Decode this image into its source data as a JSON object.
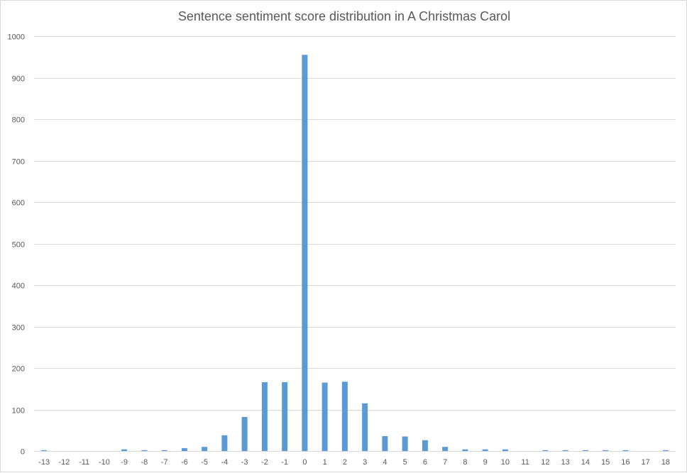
{
  "chart_data": {
    "type": "bar",
    "title": "Sentence sentiment score distribution in A Christmas Carol",
    "xlabel": "",
    "ylabel": "",
    "categories": [
      "-13",
      "-12",
      "-11",
      "-10",
      "-9",
      "-8",
      "-7",
      "-6",
      "-5",
      "-4",
      "-3",
      "-2",
      "-1",
      "0",
      "1",
      "2",
      "3",
      "4",
      "5",
      "6",
      "7",
      "8",
      "9",
      "10",
      "11",
      "12",
      "13",
      "14",
      "15",
      "16",
      "17",
      "18"
    ],
    "values": [
      2,
      0,
      0,
      0,
      4,
      2,
      2,
      7,
      10,
      38,
      82,
      166,
      166,
      955,
      165,
      167,
      115,
      36,
      35,
      26,
      10,
      4,
      4,
      4,
      0,
      2,
      2,
      2,
      2,
      2,
      0,
      2
    ],
    "ylim": [
      0,
      1000
    ],
    "yticks": [
      0,
      100,
      200,
      300,
      400,
      500,
      600,
      700,
      800,
      900,
      1000
    ],
    "grid": true,
    "legend": "none",
    "bar_color": "#5b9bd5",
    "grid_color": "#d9d9d9",
    "text_color": "#595959"
  }
}
